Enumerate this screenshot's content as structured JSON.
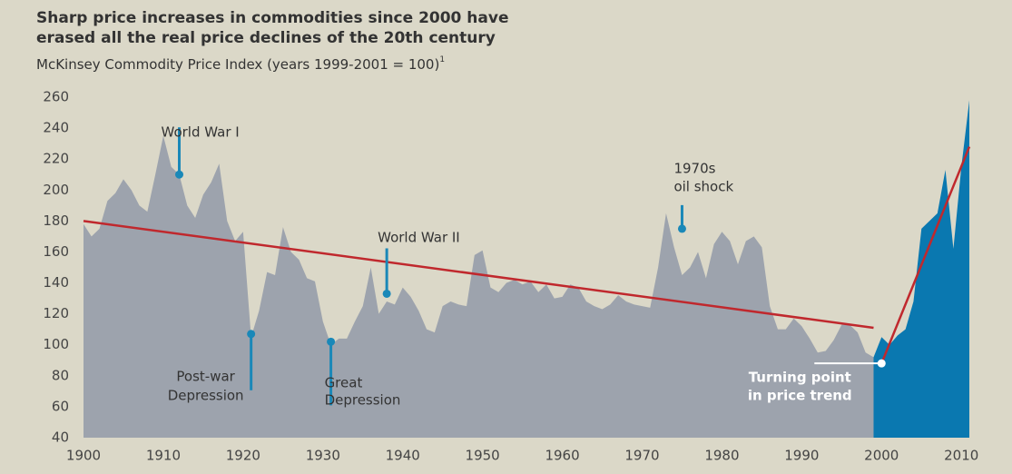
{
  "chart_data": {
    "type": "area",
    "title": [
      "Sharp price increases in commodities since 2000 have",
      "erased all the real price declines of the 20th century"
    ],
    "subtitle": "McKinsey Commodity Price Index (years 1999-2001 = 100)",
    "footnote_marker": "1",
    "x": [
      1900,
      1901,
      1902,
      1903,
      1904,
      1905,
      1906,
      1907,
      1908,
      1909,
      1910,
      1911,
      1912,
      1913,
      1914,
      1915,
      1916,
      1917,
      1918,
      1919,
      1920,
      1921,
      1922,
      1923,
      1924,
      1925,
      1926,
      1927,
      1928,
      1929,
      1930,
      1931,
      1932,
      1933,
      1934,
      1935,
      1936,
      1937,
      1938,
      1939,
      1940,
      1941,
      1942,
      1943,
      1944,
      1945,
      1946,
      1947,
      1948,
      1949,
      1950,
      1951,
      1952,
      1953,
      1954,
      1955,
      1956,
      1957,
      1958,
      1959,
      1960,
      1961,
      1962,
      1963,
      1964,
      1965,
      1966,
      1967,
      1968,
      1969,
      1970,
      1971,
      1972,
      1973,
      1974,
      1975,
      1976,
      1977,
      1978,
      1979,
      1980,
      1981,
      1982,
      1983,
      1984,
      1985,
      1986,
      1987,
      1988,
      1989,
      1990,
      1991,
      1992,
      1993,
      1994,
      1995,
      1996,
      1997,
      1998,
      1999,
      2000,
      2001,
      2002,
      2003,
      2004,
      2005,
      2006,
      2007,
      2008,
      2009,
      2010,
      2011
    ],
    "series": [
      {
        "color": "#9da3ad",
        "values": [
          178,
          170,
          175,
          193,
          198,
          207,
          200,
          190,
          186,
          210,
          235,
          215,
          210,
          190,
          182,
          197,
          205,
          217,
          180,
          167,
          173,
          105,
          122,
          147,
          145,
          176,
          160,
          155,
          143,
          141,
          115,
          100,
          104,
          104,
          115,
          125,
          150,
          120,
          128,
          126,
          137,
          131,
          122,
          110,
          108,
          125,
          128,
          126,
          125,
          158,
          161,
          137,
          134,
          140,
          142,
          139,
          141,
          134,
          139,
          130,
          131,
          139,
          137,
          128,
          125,
          123,
          126,
          132,
          128,
          126,
          125,
          124,
          150,
          185,
          163,
          145,
          150,
          160,
          143,
          165,
          173,
          167,
          152,
          167,
          170,
          163,
          125,
          110,
          110,
          117,
          112,
          104,
          95,
          96,
          103,
          113,
          113,
          108,
          95,
          92,
          null,
          null,
          null,
          null,
          null,
          null,
          null,
          null,
          null,
          null,
          null,
          null
        ]
      },
      {
        "color": "#0a78b0",
        "values": [
          null,
          null,
          null,
          null,
          null,
          null,
          null,
          null,
          null,
          null,
          null,
          null,
          null,
          null,
          null,
          null,
          null,
          null,
          null,
          null,
          null,
          null,
          null,
          null,
          null,
          null,
          null,
          null,
          null,
          null,
          null,
          null,
          null,
          null,
          null,
          null,
          null,
          null,
          null,
          null,
          null,
          null,
          null,
          null,
          null,
          null,
          null,
          null,
          null,
          null,
          null,
          null,
          null,
          null,
          null,
          null,
          null,
          null,
          null,
          null,
          null,
          null,
          null,
          null,
          null,
          null,
          null,
          null,
          null,
          null,
          null,
          null,
          null,
          null,
          null,
          null,
          null,
          null,
          null,
          null,
          null,
          null,
          null,
          null,
          null,
          null,
          null,
          null,
          null,
          null,
          null,
          null,
          null,
          null,
          null,
          null,
          null,
          null,
          null,
          92,
          105,
          100,
          106,
          110,
          128,
          175,
          180,
          185,
          213,
          162,
          215,
          258
        ]
      }
    ],
    "trend_lines": [
      {
        "color": "#c0282d",
        "x": [
          1900,
          1999
        ],
        "y": [
          180,
          111
        ]
      },
      {
        "color": "#c0282d",
        "x": [
          2000,
          2011
        ],
        "y": [
          88,
          228
        ]
      }
    ],
    "annotations": [
      {
        "lines": [
          "World War I"
        ],
        "x": 1912,
        "y": 210
      },
      {
        "lines": [
          "Post-war",
          "Depression"
        ],
        "x": 1921,
        "y": 107
      },
      {
        "lines": [
          "Great",
          "Depression"
        ],
        "x": 1931,
        "y": 102
      },
      {
        "lines": [
          "World War II"
        ],
        "x": 1938,
        "y": 133
      },
      {
        "lines": [
          "1970s",
          "oil shock"
        ],
        "x": 1975,
        "y": 175
      },
      {
        "lines": [
          "Turning point",
          "in price trend"
        ],
        "x": 2000,
        "y": 88
      }
    ],
    "annotation_color": "#1a88b8",
    "xlim": [
      1900,
      2011
    ],
    "ylim": [
      40,
      260
    ],
    "xticks": [
      1900,
      1910,
      1920,
      1930,
      1940,
      1950,
      1960,
      1970,
      1980,
      1990,
      2000,
      2010
    ],
    "yticks": [
      40,
      60,
      80,
      100,
      120,
      140,
      160,
      180,
      200,
      220,
      240,
      260
    ],
    "grid": false
  }
}
